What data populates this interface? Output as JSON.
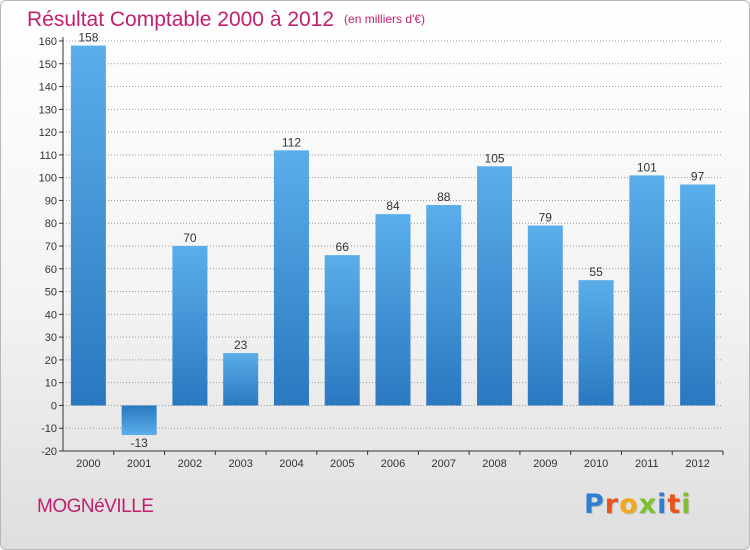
{
  "title": "Résultat Comptable 2000 à 2012",
  "unit": "(en milliers d'€)",
  "commune": "MOGNéVILLE",
  "brand": {
    "text": "Proxiti",
    "letter_colors": [
      "#2f7fd0",
      "#e8541c",
      "#f2a81d",
      "#7fbf2e",
      "#2f7fd0",
      "#e8541c",
      "#7fbf2e"
    ]
  },
  "colors": {
    "bar_light": "#5aaeea",
    "bar_dark": "#2a78c0",
    "title": "#c0206e"
  },
  "chart_data": {
    "type": "bar",
    "title": "Résultat Comptable 2000 à 2012",
    "subtitle": "(en milliers d'€)",
    "categories": [
      "2000",
      "2001",
      "2002",
      "2003",
      "2004",
      "2005",
      "2006",
      "2007",
      "2008",
      "2009",
      "2010",
      "2011",
      "2012"
    ],
    "values": [
      158,
      -13,
      70,
      23,
      112,
      66,
      84,
      88,
      105,
      79,
      55,
      101,
      97
    ],
    "data_labels": [
      "158",
      "-13",
      "70",
      "23",
      "112",
      "66",
      "84",
      "88",
      "105",
      "79",
      "55",
      "101",
      "97"
    ],
    "y_ticks": [
      -20,
      -10,
      0,
      10,
      20,
      30,
      40,
      50,
      60,
      70,
      80,
      90,
      100,
      110,
      120,
      130,
      140,
      150,
      160
    ],
    "ylim": [
      -20,
      160
    ],
    "grid": "horizontal-dotted",
    "legend": "none"
  }
}
